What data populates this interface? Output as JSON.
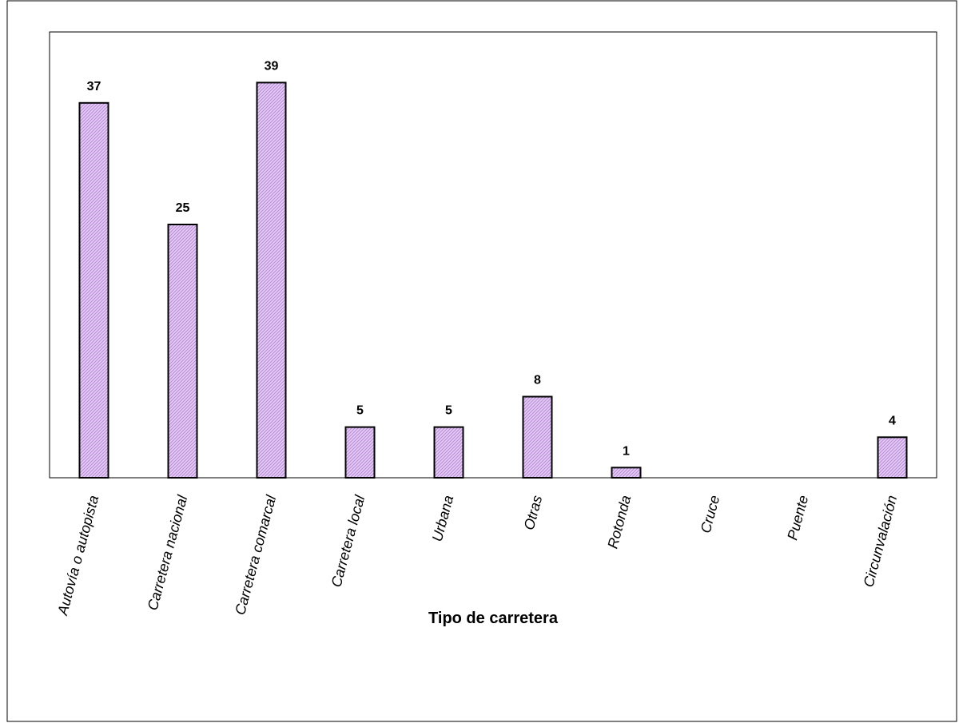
{
  "chart_data": {
    "type": "bar",
    "title": "",
    "xlabel": "Tipo de carretera",
    "ylabel": "",
    "categories": [
      "Autovía o autopista",
      "Carretera nacional",
      "Carretera comarcal",
      "Carretera local",
      "Urbana",
      "Otras",
      "Rotonda",
      "Cruce",
      "Puente",
      "Circunvalación"
    ],
    "values": [
      37,
      25,
      39,
      5,
      5,
      8,
      1,
      0,
      0,
      4
    ],
    "data_labels": [
      "37",
      "25",
      "39",
      "5",
      "5",
      "8",
      "1",
      "",
      "",
      "4"
    ],
    "ylim": [
      0,
      44
    ],
    "grid": false,
    "legend": "none",
    "colors": {
      "bar_fill": "#e6ccf5",
      "bar_hatch": "#b58ad6",
      "bar_stroke": "#000000",
      "plot_border": "#000000"
    }
  }
}
